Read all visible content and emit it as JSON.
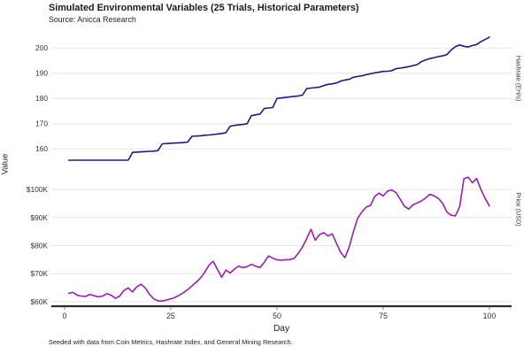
{
  "title": "Simulated Environmental Variables (25 Trials, Historical Parameters)",
  "subtitle": "Source: Anicca Research",
  "footer": "Seeded with data from Coin Metrics, Hashrate Index, and General Mining Research.",
  "y_axis_label": "Value",
  "colors": {
    "hashrate_line": "#1e1a82",
    "price_line": "#9b1eb4",
    "grid": "#e6e6e6",
    "axis_line": "#2b2b2b",
    "tick_text": "#333333"
  },
  "chart_data": {
    "type": "line",
    "title": "Simulated Environmental Variables (25 Trials, Historical Parameters)",
    "xlabel": "Day",
    "x_ticks": [
      0,
      25,
      50,
      75,
      100
    ],
    "x_lim": [
      -3.1,
      105.2
    ],
    "grid": "horizontal-only",
    "legend_position": "none",
    "x": [
      1,
      2,
      3,
      4,
      5,
      6,
      7,
      8,
      9,
      10,
      11,
      12,
      13,
      14,
      15,
      16,
      17,
      18,
      19,
      20,
      21,
      22,
      23,
      24,
      25,
      26,
      27,
      28,
      29,
      30,
      31,
      32,
      33,
      34,
      35,
      36,
      37,
      38,
      39,
      40,
      41,
      42,
      43,
      44,
      45,
      46,
      47,
      48,
      49,
      50,
      51,
      52,
      53,
      54,
      55,
      56,
      57,
      58,
      59,
      60,
      61,
      62,
      63,
      64,
      65,
      66,
      67,
      68,
      69,
      70,
      71,
      72,
      73,
      74,
      75,
      76,
      77,
      78,
      79,
      80,
      81,
      82,
      83,
      84,
      85,
      86,
      87,
      88,
      89,
      90,
      91,
      92,
      93,
      94,
      95,
      96,
      97,
      98,
      99,
      100
    ],
    "panels": [
      {
        "name": "hashrate",
        "right_label": "Hashrate (EH/s)",
        "unit": "EH/s",
        "color": "#1e1a82",
        "y_ticks": [
          160,
          170,
          180,
          190,
          200
        ],
        "y_tick_labels": [
          "160",
          "170",
          "180",
          "190",
          "200"
        ],
        "y_lim": [
          153.4,
          205.0
        ],
        "values": [
          155.5,
          155.5,
          155.5,
          155.5,
          155.5,
          155.5,
          155.5,
          155.5,
          155.5,
          155.5,
          155.5,
          155.5,
          155.5,
          155.5,
          155.5,
          158.6,
          158.7,
          158.8,
          158.9,
          159.0,
          159.1,
          159.3,
          162.0,
          162.1,
          162.2,
          162.3,
          162.4,
          162.5,
          162.7,
          165.0,
          165.1,
          165.2,
          165.4,
          165.5,
          165.7,
          165.9,
          166.1,
          166.4,
          169.0,
          169.3,
          169.5,
          169.7,
          170.0,
          173.2,
          173.5,
          173.8,
          176.0,
          176.2,
          176.4,
          180.0,
          180.2,
          180.4,
          180.6,
          180.8,
          181.0,
          181.3,
          183.9,
          184.1,
          184.3,
          184.5,
          185.1,
          185.6,
          185.8,
          186.1,
          186.9,
          187.3,
          187.6,
          188.4,
          188.7,
          189.0,
          189.4,
          189.8,
          190.1,
          190.4,
          190.7,
          190.8,
          191.0,
          191.8,
          192.0,
          192.3,
          192.6,
          193.0,
          193.4,
          194.6,
          195.3,
          195.8,
          196.2,
          196.6,
          196.9,
          197.4,
          199.2,
          200.5,
          201.2,
          200.7,
          200.4,
          201.0,
          201.4,
          202.5,
          203.4,
          204.3
        ]
      },
      {
        "name": "price",
        "right_label": "Price (USD)",
        "unit": "USD thousands",
        "color": "#9b1eb4",
        "y_ticks": [
          60,
          70,
          80,
          90,
          100
        ],
        "y_tick_labels": [
          "$60K",
          "$70K",
          "$80K",
          "$90K",
          "$100K"
        ],
        "y_lim": [
          58.7,
          105.7
        ],
        "values": [
          63.0,
          63.3,
          62.3,
          62.0,
          61.9,
          62.6,
          62.1,
          61.7,
          62.0,
          62.9,
          62.3,
          61.2,
          62.0,
          64.0,
          64.9,
          63.5,
          65.3,
          66.2,
          64.9,
          62.6,
          61.0,
          60.3,
          60.2,
          60.6,
          61.0,
          61.5,
          62.3,
          63.2,
          64.3,
          65.6,
          66.9,
          68.4,
          70.5,
          73.0,
          74.4,
          71.5,
          68.7,
          71.3,
          70.2,
          71.6,
          72.7,
          72.1,
          72.5,
          73.3,
          72.6,
          72.2,
          74.0,
          76.3,
          75.5,
          74.9,
          74.8,
          74.9,
          75.0,
          75.4,
          77.2,
          79.5,
          82.5,
          85.8,
          81.9,
          83.9,
          84.6,
          83.4,
          84.2,
          80.8,
          77.5,
          75.7,
          79.5,
          85.0,
          89.8,
          92.0,
          93.7,
          94.3,
          97.5,
          98.7,
          97.7,
          99.4,
          99.8,
          98.9,
          96.5,
          94.0,
          93.0,
          94.5,
          95.2,
          95.9,
          97.0,
          98.3,
          97.7,
          96.8,
          95.0,
          91.9,
          90.8,
          90.6,
          93.9,
          103.8,
          104.4,
          102.4,
          103.9,
          100.0,
          96.8,
          94.1
        ]
      }
    ]
  }
}
